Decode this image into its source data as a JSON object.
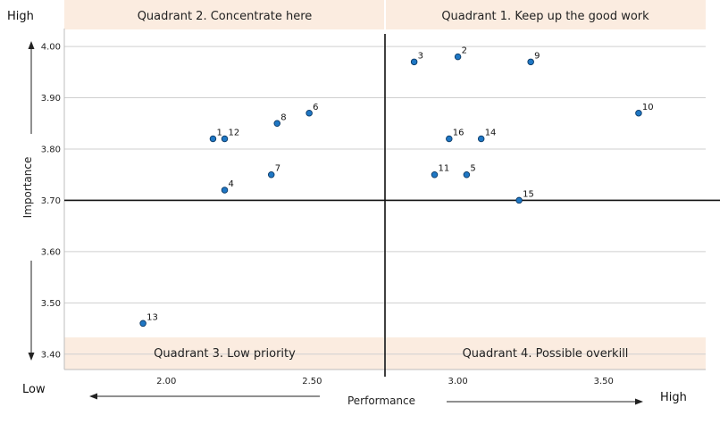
{
  "chart_data": {
    "type": "scatter",
    "xlabel": "Performance",
    "ylabel": "Importance",
    "xlim": [
      1.65,
      3.85
    ],
    "ylim": [
      3.37,
      4.035
    ],
    "x_ticks": [
      "2.00",
      "2.50",
      "3.00",
      "3.50"
    ],
    "x_tick_values": [
      2.0,
      2.5,
      3.0,
      3.5
    ],
    "y_ticks": [
      "4.00",
      "3.90",
      "3.80",
      "3.70",
      "3.60",
      "3.50",
      "3.40"
    ],
    "y_tick_values": [
      4.0,
      3.9,
      3.8,
      3.7,
      3.6,
      3.5,
      3.4
    ],
    "grid": "horizontal",
    "divider_x": 2.75,
    "divider_y": 3.7,
    "quadrants": {
      "top_left": "Quadrant 2. Concentrate here",
      "top_right": "Quadrant 1. Keep up the good work",
      "bottom_left": "Quadrant 3. Low priority",
      "bottom_right": "Quadrant 4. Possible overkill"
    },
    "corner_labels": {
      "top_high": "High",
      "bottom_low": "Low",
      "right_high": "High"
    },
    "point_color": "#1f77c4",
    "quadrant_band_color": "#fbece0",
    "points": [
      {
        "label": "1",
        "x": 2.16,
        "y": 3.82
      },
      {
        "label": "2",
        "x": 3.0,
        "y": 3.98
      },
      {
        "label": "3",
        "x": 2.85,
        "y": 3.97
      },
      {
        "label": "4",
        "x": 2.2,
        "y": 3.72
      },
      {
        "label": "5",
        "x": 3.03,
        "y": 3.75
      },
      {
        "label": "6",
        "x": 2.49,
        "y": 3.87
      },
      {
        "label": "7",
        "x": 2.36,
        "y": 3.75
      },
      {
        "label": "8",
        "x": 2.38,
        "y": 3.85
      },
      {
        "label": "9",
        "x": 3.25,
        "y": 3.97
      },
      {
        "label": "10",
        "x": 3.62,
        "y": 3.87
      },
      {
        "label": "11",
        "x": 2.92,
        "y": 3.75
      },
      {
        "label": "12",
        "x": 2.2,
        "y": 3.82
      },
      {
        "label": "13",
        "x": 1.92,
        "y": 3.46
      },
      {
        "label": "14",
        "x": 3.08,
        "y": 3.82
      },
      {
        "label": "15",
        "x": 3.21,
        "y": 3.7
      },
      {
        "label": "16",
        "x": 2.97,
        "y": 3.82
      }
    ]
  }
}
